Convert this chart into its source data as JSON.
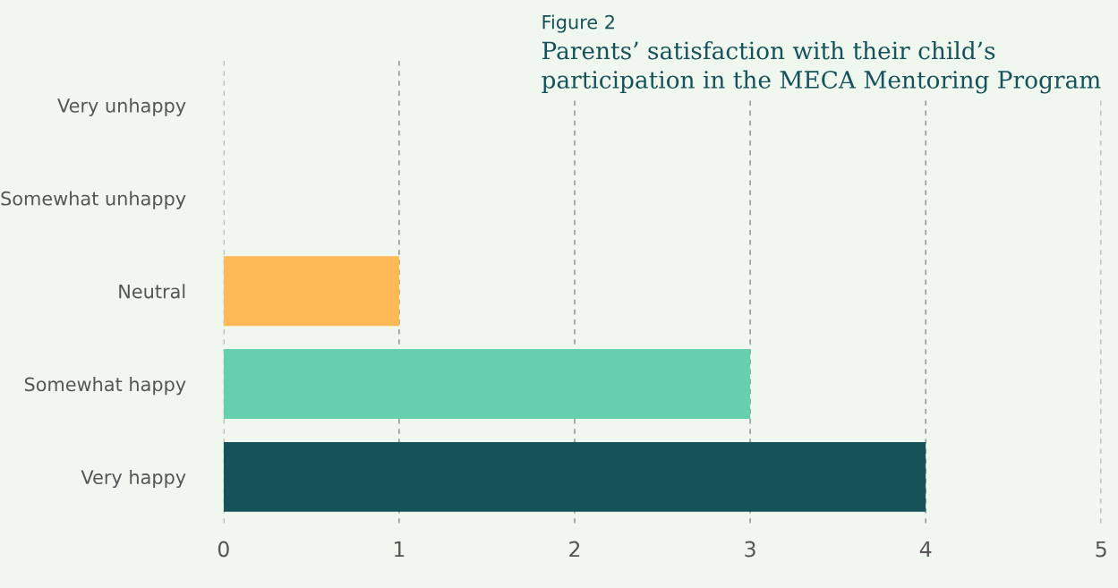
{
  "chart_data": {
    "type": "bar",
    "orientation": "horizontal",
    "subtitle": "Figure 2",
    "title": "Parents’ satisfaction with their child’s\nparticipation in the MECA Mentoring Program",
    "categories": [
      "Very unhappy",
      "Somewhat unhappy",
      "Neutral",
      "Somewhat happy",
      "Very happy"
    ],
    "values": [
      0,
      0,
      1,
      3,
      4
    ],
    "colors": [
      "#ffb957",
      "#ffb957",
      "#ffb957",
      "#66cfae",
      "#16525a"
    ],
    "xlim": [
      0,
      5
    ],
    "xticks": [
      0,
      1,
      2,
      3,
      4,
      5
    ],
    "grid": "x",
    "line_style": "dashed"
  }
}
